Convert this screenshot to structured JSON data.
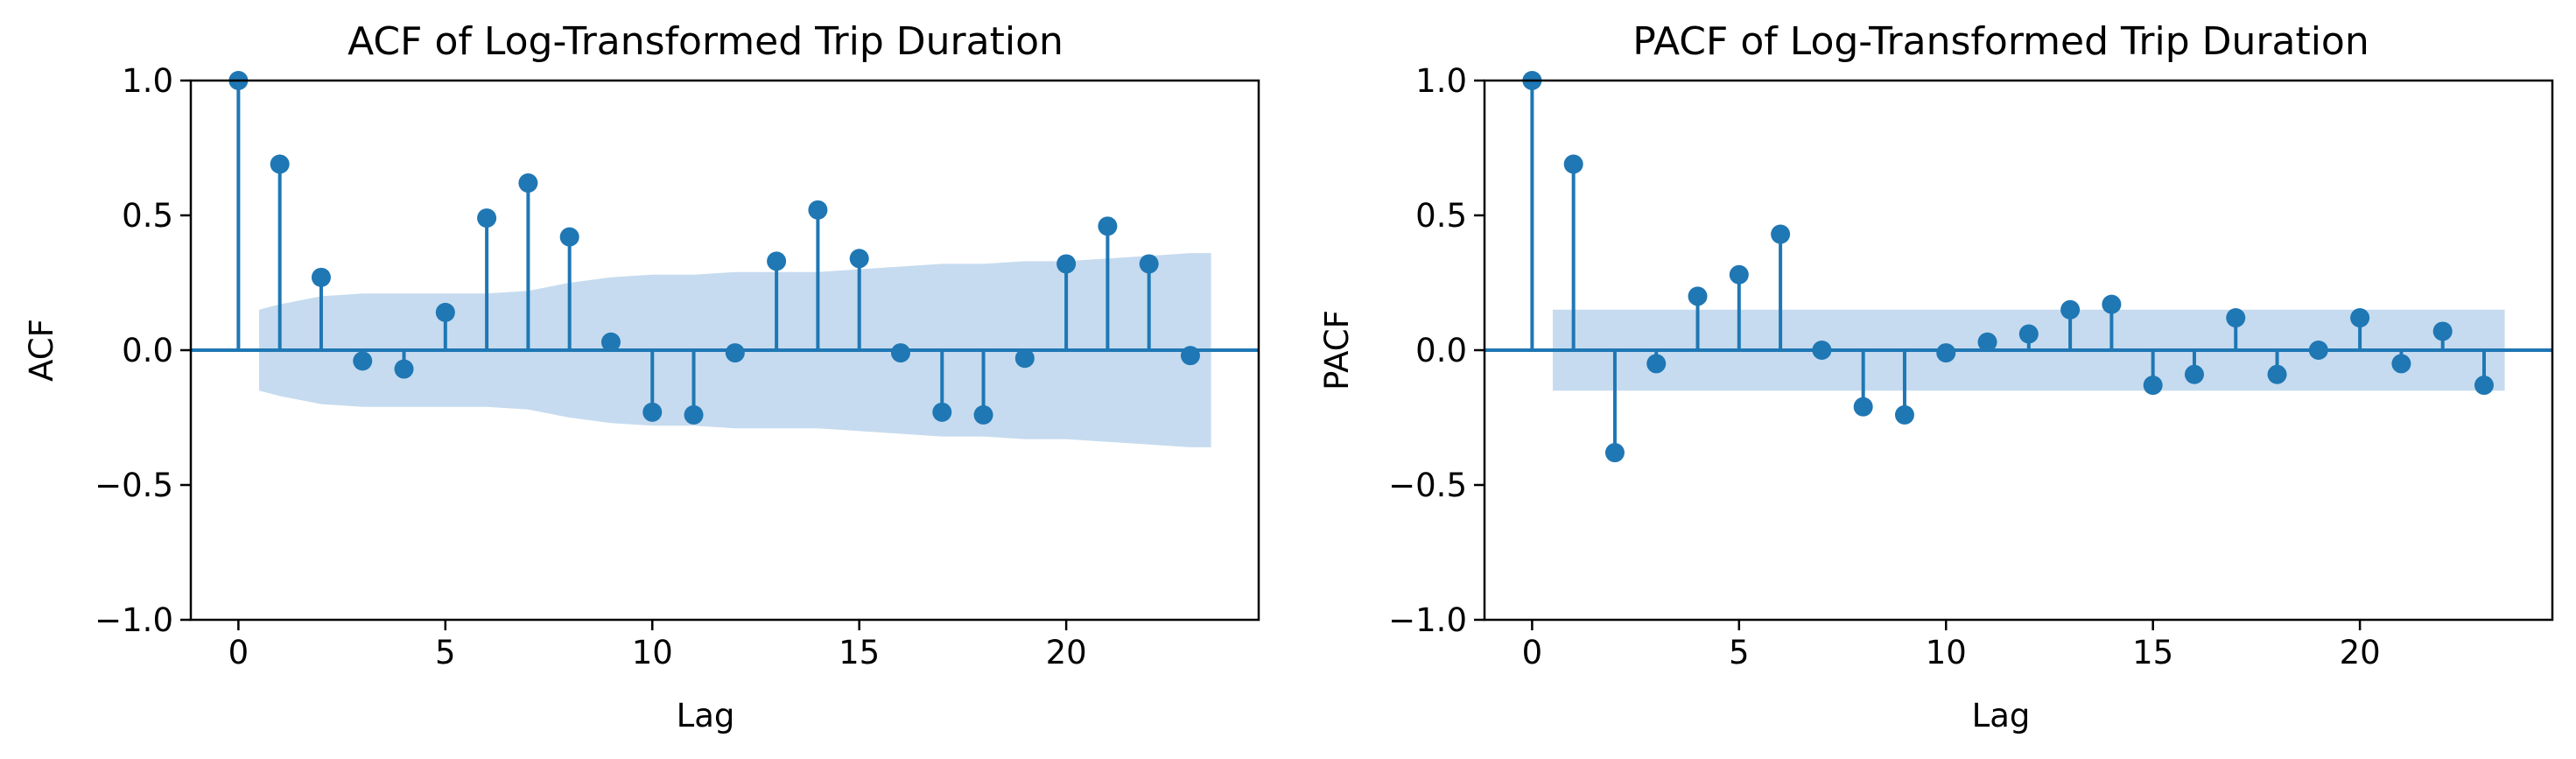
{
  "chart_data": [
    {
      "type": "stem",
      "title": "ACF of Log-Transformed Trip Duration",
      "xlabel": "Lag",
      "ylabel": "ACF",
      "xlim": [
        -1.15,
        24.65
      ],
      "ylim": [
        -1.0,
        1.0
      ],
      "xticks": [
        0,
        5,
        10,
        15,
        20
      ],
      "xtick_labels": [
        "0",
        "5",
        "10",
        "15",
        "20"
      ],
      "yticks": [
        -1.0,
        -0.5,
        0.0,
        0.5,
        1.0
      ],
      "ytick_labels": [
        "−1.0",
        "−0.5",
        "0.0",
        "0.5",
        "1.0"
      ],
      "grid": false,
      "color": "#1f77b4",
      "band_color": "#c6dbef",
      "lags": [
        0,
        1,
        2,
        3,
        4,
        5,
        6,
        7,
        8,
        9,
        10,
        11,
        12,
        13,
        14,
        15,
        16,
        17,
        18,
        19,
        20,
        21,
        22,
        23
      ],
      "values": [
        1.0,
        0.69,
        0.27,
        -0.04,
        -0.07,
        0.14,
        0.49,
        0.62,
        0.42,
        0.03,
        -0.23,
        -0.24,
        -0.01,
        0.33,
        0.52,
        0.34,
        -0.01,
        -0.23,
        -0.24,
        -0.03,
        0.32,
        0.46,
        0.32,
        -0.02
      ],
      "confidence_band": {
        "lags": [
          0.5,
          1,
          2,
          3,
          4,
          5,
          6,
          7,
          8,
          9,
          10,
          11,
          12,
          13,
          14,
          15,
          16,
          17,
          18,
          19,
          20,
          21,
          22,
          23,
          23.5
        ],
        "upper": [
          0.15,
          0.17,
          0.2,
          0.21,
          0.21,
          0.21,
          0.21,
          0.22,
          0.25,
          0.27,
          0.28,
          0.28,
          0.29,
          0.29,
          0.29,
          0.3,
          0.31,
          0.32,
          0.32,
          0.33,
          0.33,
          0.34,
          0.35,
          0.36,
          0.36
        ]
      }
    },
    {
      "type": "stem",
      "title": "PACF of Log-Transformed Trip Duration",
      "xlabel": "Lag",
      "ylabel": "PACF",
      "xlim": [
        -1.15,
        24.65
      ],
      "ylim": [
        -1.0,
        1.0
      ],
      "xticks": [
        0,
        5,
        10,
        15,
        20
      ],
      "xtick_labels": [
        "0",
        "5",
        "10",
        "15",
        "20"
      ],
      "yticks": [
        -1.0,
        -0.5,
        0.0,
        0.5,
        1.0
      ],
      "ytick_labels": [
        "−1.0",
        "−0.5",
        "0.0",
        "0.5",
        "1.0"
      ],
      "grid": false,
      "color": "#1f77b4",
      "band_color": "#c6dbef",
      "lags": [
        0,
        1,
        2,
        3,
        4,
        5,
        6,
        7,
        8,
        9,
        10,
        11,
        12,
        13,
        14,
        15,
        16,
        17,
        18,
        19,
        20,
        21,
        22,
        23
      ],
      "values": [
        1.0,
        0.69,
        -0.38,
        -0.05,
        0.2,
        0.28,
        0.43,
        0.0,
        -0.21,
        -0.24,
        -0.01,
        0.03,
        0.06,
        0.15,
        0.17,
        -0.13,
        -0.09,
        0.12,
        -0.09,
        0.0,
        0.12,
        -0.05,
        0.07,
        -0.13
      ],
      "confidence_band": {
        "lags": [
          0.5,
          23.5
        ],
        "upper": [
          0.15,
          0.15
        ]
      }
    }
  ]
}
